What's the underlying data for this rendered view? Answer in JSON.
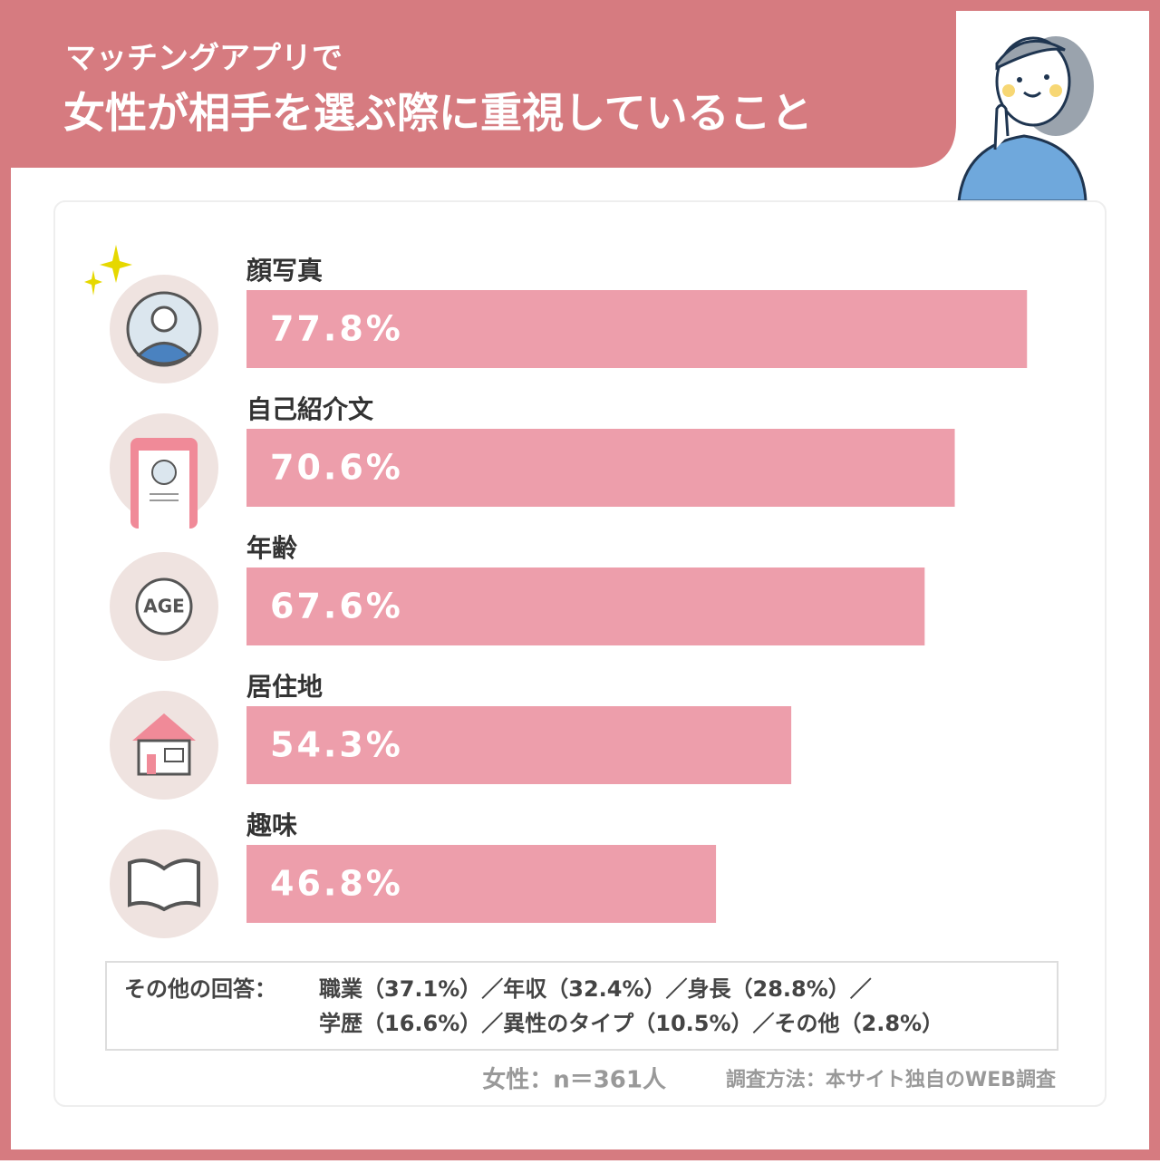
{
  "header": {
    "subtitle": "マッチングアプリで",
    "title": "女性が相手を選ぶ際に重視していること"
  },
  "chart_data": {
    "type": "bar",
    "orientation": "horizontal",
    "categories": [
      "顔写真",
      "自己紹介文",
      "年齢",
      "居住地",
      "趣味"
    ],
    "values": [
      77.8,
      70.6,
      67.6,
      54.3,
      46.8
    ],
    "value_labels": [
      "77.8%",
      "70.6%",
      "67.6%",
      "54.3%",
      "46.8%"
    ],
    "color": "#ed9eab",
    "icon_text": "AGE"
  },
  "others": {
    "label": "その他の回答：",
    "lines": [
      "職業（37.1%）／年収（32.4%）／身長（28.8%）／",
      "学歴（16.6%）／異性のタイプ（10.5%）／その他（2.8%）"
    ]
  },
  "footer": {
    "sample": "女性：n＝361人",
    "method": "調査方法：本サイト独自のWEB調査"
  }
}
